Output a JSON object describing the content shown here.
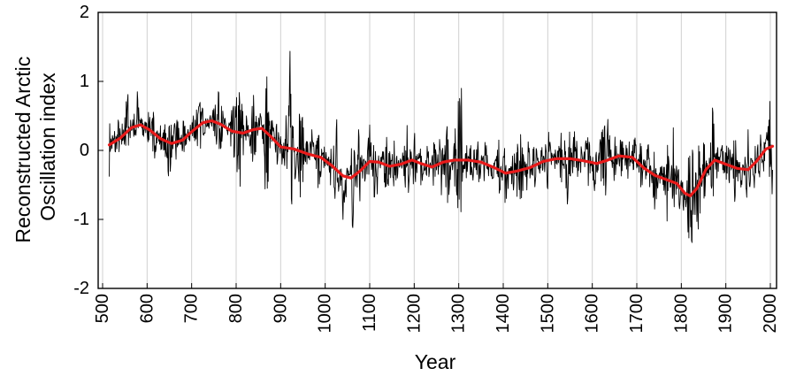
{
  "chart_data": {
    "type": "line",
    "xlabel": "Year",
    "ylabel_lines": [
      "Reconstructed Arctic",
      "Oscillation index"
    ],
    "xlim": [
      500,
      2010
    ],
    "ylim": [
      -2,
      2
    ],
    "grid": "vertical",
    "x_ticks": [
      "500",
      "600",
      "700",
      "800",
      "900",
      "1000",
      "1100",
      "1200",
      "1300",
      "1400",
      "1500",
      "1600",
      "1700",
      "1800",
      "1900",
      "2000"
    ],
    "y_ticks": [
      "2",
      "1",
      "0",
      "-1",
      "-2"
    ],
    "colors": {
      "annual": "#000000",
      "smoothed": "#e81a1a",
      "grid": "#d0d0d0"
    },
    "series": [
      {
        "style": "annual",
        "x_start": 515,
        "x_end": 2005,
        "anchors": [
          {
            "x": 515,
            "y": -0.38
          },
          {
            "x": 520,
            "y": 0.32
          },
          {
            "x": 528,
            "y": -0.1
          },
          {
            "x": 535,
            "y": 0.45
          },
          {
            "x": 545,
            "y": 0.0
          },
          {
            "x": 555,
            "y": 0.95
          },
          {
            "x": 565,
            "y": 0.25
          },
          {
            "x": 578,
            "y": 0.85
          },
          {
            "x": 590,
            "y": 0.15
          },
          {
            "x": 605,
            "y": 0.55
          },
          {
            "x": 615,
            "y": -0.15
          },
          {
            "x": 630,
            "y": 0.35
          },
          {
            "x": 650,
            "y": -0.45
          },
          {
            "x": 665,
            "y": 0.6
          },
          {
            "x": 680,
            "y": -0.1
          },
          {
            "x": 700,
            "y": 0.45
          },
          {
            "x": 720,
            "y": 0.7
          },
          {
            "x": 740,
            "y": 0.3
          },
          {
            "x": 760,
            "y": 0.85
          },
          {
            "x": 780,
            "y": 0.25
          },
          {
            "x": 795,
            "y": -0.1
          },
          {
            "x": 810,
            "y": -0.55
          },
          {
            "x": 823,
            "y": 0.5
          },
          {
            "x": 840,
            "y": -0.3
          },
          {
            "x": 855,
            "y": 0.75
          },
          {
            "x": 868,
            "y": -0.95
          },
          {
            "x": 880,
            "y": 0.55
          },
          {
            "x": 892,
            "y": -0.2
          },
          {
            "x": 905,
            "y": 0.45
          },
          {
            "x": 912,
            "y": -0.75
          },
          {
            "x": 922,
            "y": 1.68
          },
          {
            "x": 932,
            "y": -0.55
          },
          {
            "x": 945,
            "y": 0.85
          },
          {
            "x": 958,
            "y": -0.35
          },
          {
            "x": 970,
            "y": 0.3
          },
          {
            "x": 985,
            "y": -0.6
          },
          {
            "x": 1000,
            "y": 0.15
          },
          {
            "x": 1012,
            "y": -0.5
          },
          {
            "x": 1025,
            "y": 0.55
          },
          {
            "x": 1040,
            "y": -1.0
          },
          {
            "x": 1055,
            "y": -0.3
          },
          {
            "x": 1062,
            "y": -1.22
          },
          {
            "x": 1075,
            "y": 0.3
          },
          {
            "x": 1090,
            "y": -0.5
          },
          {
            "x": 1100,
            "y": 0.45
          },
          {
            "x": 1112,
            "y": -0.9
          },
          {
            "x": 1125,
            "y": -0.2
          },
          {
            "x": 1140,
            "y": 0.25
          },
          {
            "x": 1155,
            "y": -0.55
          },
          {
            "x": 1170,
            "y": -0.1
          },
          {
            "x": 1185,
            "y": -0.75
          },
          {
            "x": 1200,
            "y": 0.3
          },
          {
            "x": 1215,
            "y": -0.5
          },
          {
            "x": 1230,
            "y": 0.1
          },
          {
            "x": 1245,
            "y": -0.6
          },
          {
            "x": 1260,
            "y": 0.35
          },
          {
            "x": 1275,
            "y": -0.85
          },
          {
            "x": 1290,
            "y": 0.2
          },
          {
            "x": 1305,
            "y": 1.05
          },
          {
            "x": 1315,
            "y": -0.45
          },
          {
            "x": 1330,
            "y": 0.2
          },
          {
            "x": 1345,
            "y": -0.55
          },
          {
            "x": 1360,
            "y": 0.15
          },
          {
            "x": 1375,
            "y": -0.45
          },
          {
            "x": 1390,
            "y": 0.15
          },
          {
            "x": 1405,
            "y": -0.82
          },
          {
            "x": 1420,
            "y": -0.15
          },
          {
            "x": 1440,
            "y": 0.25
          },
          {
            "x": 1455,
            "y": -0.7
          },
          {
            "x": 1470,
            "y": 0.2
          },
          {
            "x": 1485,
            "y": -0.45
          },
          {
            "x": 1500,
            "y": 0.35
          },
          {
            "x": 1515,
            "y": -0.3
          },
          {
            "x": 1530,
            "y": 0.25
          },
          {
            "x": 1545,
            "y": -0.85
          },
          {
            "x": 1560,
            "y": 0.35
          },
          {
            "x": 1575,
            "y": -0.3
          },
          {
            "x": 1590,
            "y": 0.3
          },
          {
            "x": 1605,
            "y": -0.6
          },
          {
            "x": 1620,
            "y": 0.25
          },
          {
            "x": 1635,
            "y": 0.45
          },
          {
            "x": 1650,
            "y": -0.5
          },
          {
            "x": 1665,
            "y": 0.25
          },
          {
            "x": 1680,
            "y": -0.4
          },
          {
            "x": 1695,
            "y": 0.25
          },
          {
            "x": 1710,
            "y": -0.6
          },
          {
            "x": 1725,
            "y": 0.15
          },
          {
            "x": 1740,
            "y": -0.85
          },
          {
            "x": 1755,
            "y": -0.2
          },
          {
            "x": 1770,
            "y": -1.15
          },
          {
            "x": 1783,
            "y": 0.45
          },
          {
            "x": 1795,
            "y": -0.9
          },
          {
            "x": 1805,
            "y": -0.35
          },
          {
            "x": 1813,
            "y": -1.1
          },
          {
            "x": 1822,
            "y": -1.48
          },
          {
            "x": 1830,
            "y": -0.9
          },
          {
            "x": 1840,
            "y": -1.2
          },
          {
            "x": 1850,
            "y": 0.2
          },
          {
            "x": 1862,
            "y": -0.5
          },
          {
            "x": 1870,
            "y": 0.72
          },
          {
            "x": 1880,
            "y": -0.4
          },
          {
            "x": 1892,
            "y": 0.1
          },
          {
            "x": 1905,
            "y": -0.65
          },
          {
            "x": 1920,
            "y": 0.25
          },
          {
            "x": 1935,
            "y": -0.55
          },
          {
            "x": 1950,
            "y": 0.3
          },
          {
            "x": 1965,
            "y": -0.6
          },
          {
            "x": 1975,
            "y": 0.45
          },
          {
            "x": 1985,
            "y": -0.3
          },
          {
            "x": 1995,
            "y": 0.5
          },
          {
            "x": 2003,
            "y": 0.92
          }
        ]
      },
      {
        "style": "smoothed",
        "points": [
          {
            "x": 515,
            "y": 0.08
          },
          {
            "x": 540,
            "y": 0.18
          },
          {
            "x": 565,
            "y": 0.33
          },
          {
            "x": 585,
            "y": 0.37
          },
          {
            "x": 605,
            "y": 0.3
          },
          {
            "x": 630,
            "y": 0.17
          },
          {
            "x": 655,
            "y": 0.1
          },
          {
            "x": 680,
            "y": 0.15
          },
          {
            "x": 700,
            "y": 0.27
          },
          {
            "x": 725,
            "y": 0.4
          },
          {
            "x": 745,
            "y": 0.43
          },
          {
            "x": 765,
            "y": 0.38
          },
          {
            "x": 790,
            "y": 0.28
          },
          {
            "x": 815,
            "y": 0.25
          },
          {
            "x": 838,
            "y": 0.3
          },
          {
            "x": 858,
            "y": 0.32
          },
          {
            "x": 878,
            "y": 0.2
          },
          {
            "x": 900,
            "y": 0.05
          },
          {
            "x": 930,
            "y": 0.02
          },
          {
            "x": 960,
            "y": -0.05
          },
          {
            "x": 990,
            "y": -0.1
          },
          {
            "x": 1015,
            "y": -0.22
          },
          {
            "x": 1040,
            "y": -0.37
          },
          {
            "x": 1058,
            "y": -0.4
          },
          {
            "x": 1078,
            "y": -0.3
          },
          {
            "x": 1100,
            "y": -0.16
          },
          {
            "x": 1120,
            "y": -0.17
          },
          {
            "x": 1145,
            "y": -0.23
          },
          {
            "x": 1170,
            "y": -0.2
          },
          {
            "x": 1195,
            "y": -0.14
          },
          {
            "x": 1215,
            "y": -0.19
          },
          {
            "x": 1240,
            "y": -0.24
          },
          {
            "x": 1265,
            "y": -0.17
          },
          {
            "x": 1290,
            "y": -0.14
          },
          {
            "x": 1320,
            "y": -0.14
          },
          {
            "x": 1350,
            "y": -0.17
          },
          {
            "x": 1380,
            "y": -0.25
          },
          {
            "x": 1405,
            "y": -0.33
          },
          {
            "x": 1430,
            "y": -0.3
          },
          {
            "x": 1460,
            "y": -0.25
          },
          {
            "x": 1490,
            "y": -0.16
          },
          {
            "x": 1520,
            "y": -0.12
          },
          {
            "x": 1550,
            "y": -0.12
          },
          {
            "x": 1580,
            "y": -0.15
          },
          {
            "x": 1610,
            "y": -0.19
          },
          {
            "x": 1635,
            "y": -0.14
          },
          {
            "x": 1660,
            "y": -0.08
          },
          {
            "x": 1690,
            "y": -0.1
          },
          {
            "x": 1715,
            "y": -0.25
          },
          {
            "x": 1740,
            "y": -0.36
          },
          {
            "x": 1765,
            "y": -0.42
          },
          {
            "x": 1790,
            "y": -0.48
          },
          {
            "x": 1808,
            "y": -0.62
          },
          {
            "x": 1820,
            "y": -0.66
          },
          {
            "x": 1835,
            "y": -0.55
          },
          {
            "x": 1855,
            "y": -0.28
          },
          {
            "x": 1875,
            "y": -0.14
          },
          {
            "x": 1900,
            "y": -0.2
          },
          {
            "x": 1925,
            "y": -0.26
          },
          {
            "x": 1950,
            "y": -0.28
          },
          {
            "x": 1970,
            "y": -0.15
          },
          {
            "x": 1990,
            "y": 0.02
          },
          {
            "x": 2005,
            "y": 0.06
          }
        ]
      }
    ]
  }
}
